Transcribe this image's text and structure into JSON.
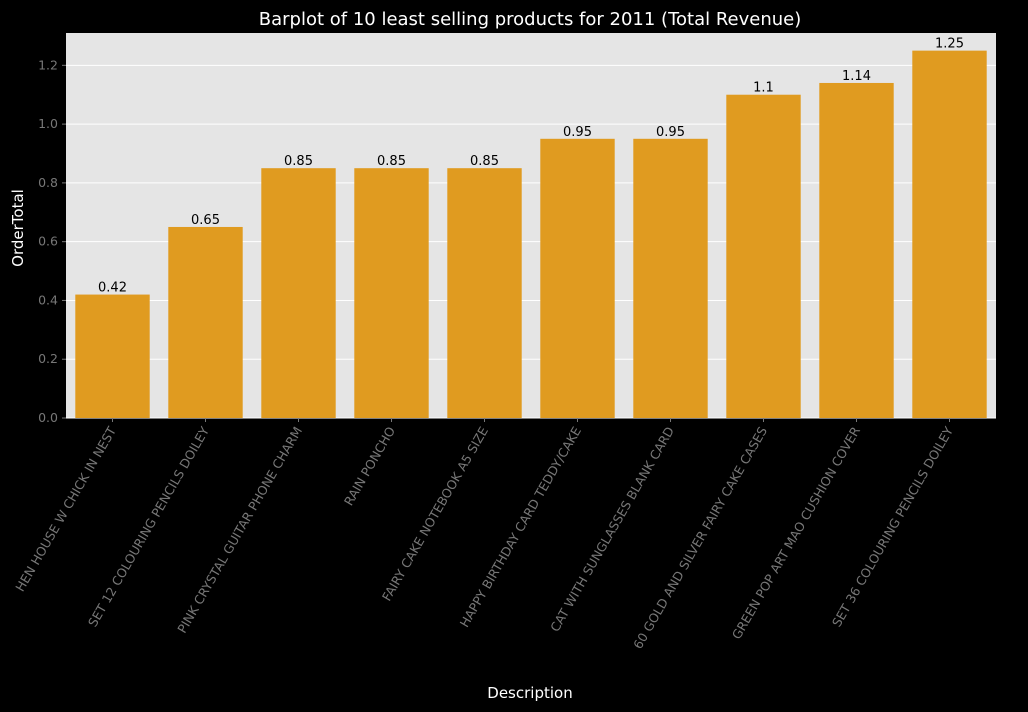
{
  "chart_data": {
    "type": "bar",
    "title": "Barplot of 10 least selling products for 2011 (Total Revenue)",
    "xlabel": "Description",
    "ylabel": "OrderTotal",
    "categories": [
      "HEN HOUSE W CHICK IN NEST",
      "SET 12 COLOURING PENCILS DOILEY",
      "PINK CRYSTAL GUITAR PHONE CHARM",
      "RAIN PONCHO",
      "FAIRY CAKE NOTEBOOK A5 SIZE",
      "HAPPY BIRTHDAY CARD TEDDY/CAKE",
      "CAT WITH SUNGLASSES BLANK CARD",
      "60 GOLD AND SILVER FAIRY CAKE CASES",
      "GREEN POP ART MAO CUSHION COVER",
      "SET 36 COLOURING PENCILS DOILEY"
    ],
    "values": [
      0.42,
      0.65,
      0.85,
      0.85,
      0.85,
      0.95,
      0.95,
      1.1,
      1.14,
      1.25
    ],
    "value_labels": [
      "0.42",
      "0.65",
      "0.85",
      "0.85",
      "0.85",
      "0.95",
      "0.95",
      "1.1",
      "1.14",
      "1.25"
    ],
    "ylim": [
      0,
      1.31
    ],
    "yticks": [
      0.0,
      0.2,
      0.4,
      0.6,
      0.8,
      1.0,
      1.2
    ],
    "ytick_labels": [
      "0.0",
      "0.2",
      "0.4",
      "0.6",
      "0.8",
      "1.0",
      "1.2"
    ],
    "grid": true,
    "bar_color": "#e09b20",
    "plot_background": "#e5e5e5",
    "figure_background": "#000000",
    "gridline_color": "#ffffff"
  }
}
